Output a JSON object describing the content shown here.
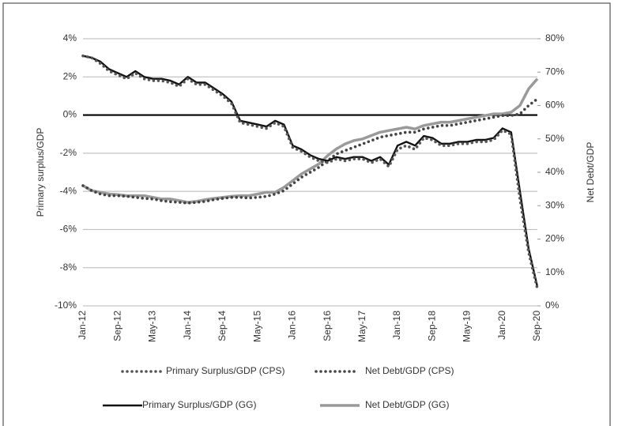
{
  "chart_data": {
    "type": "line",
    "ylabel": "Primary surplus/GDP",
    "y2label": "Net Debt/GDP",
    "categories": [
      "Jan-12",
      null,
      null,
      null,
      "Sep-12",
      null,
      null,
      null,
      "May-13",
      null,
      null,
      null,
      "Jan-14",
      null,
      null,
      null,
      "Sep-14",
      null,
      null,
      null,
      "May-15",
      null,
      null,
      null,
      "Jan-16",
      null,
      null,
      null,
      "Sep-16",
      null,
      null,
      null,
      "May-17",
      null,
      null,
      null,
      "Jan-18",
      null,
      null,
      null,
      "Sep-18",
      null,
      null,
      null,
      "May-19",
      null,
      null,
      null,
      "Jan-20",
      null,
      null,
      null,
      "Sep-20"
    ],
    "ylim": [
      -10,
      4
    ],
    "yticks": [
      {
        "value": 4,
        "label": "4%"
      },
      {
        "value": 2,
        "label": "2%"
      },
      {
        "value": 0,
        "label": "0%"
      },
      {
        "value": -2,
        "label": "-2%"
      },
      {
        "value": -4,
        "label": "-4%"
      },
      {
        "value": -6,
        "label": "-6%"
      },
      {
        "value": -8,
        "label": "-8%"
      },
      {
        "value": -10,
        "label": "-10%"
      }
    ],
    "y2lim": [
      0,
      80
    ],
    "y2ticks": [
      {
        "value": 80,
        "label": "80%"
      },
      {
        "value": 70,
        "label": "70%"
      },
      {
        "value": 60,
        "label": "60%"
      },
      {
        "value": 50,
        "label": "50%"
      },
      {
        "value": 40,
        "label": "40%"
      },
      {
        "value": 30,
        "label": "30%"
      },
      {
        "value": 20,
        "label": "20%"
      },
      {
        "value": 10,
        "label": "10%"
      },
      {
        "value": 0,
        "label": "0%"
      }
    ],
    "grid": true,
    "series": [
      {
        "name": "Primary Surplus/GDP (CPS)",
        "color": "#555555",
        "style": "dotted",
        "values": [
          3.1,
          3.0,
          2.7,
          2.3,
          2.1,
          1.9,
          2.2,
          1.9,
          1.8,
          1.8,
          1.7,
          1.5,
          1.9,
          1.6,
          1.6,
          1.3,
          1.0,
          0.6,
          -0.4,
          -0.5,
          -0.6,
          -0.7,
          -0.4,
          -0.6,
          -1.7,
          -1.9,
          -2.2,
          -2.4,
          -2.5,
          -2.3,
          -2.4,
          -2.3,
          -2.3,
          -2.5,
          -2.3,
          -2.7,
          -1.8,
          -1.6,
          -1.8,
          -1.2,
          -1.3,
          -1.6,
          -1.6,
          -1.5,
          -1.5,
          -1.4,
          -1.4,
          -1.3,
          -0.8,
          -1.0,
          -4.4,
          -7.2,
          -9.1
        ]
      },
      {
        "name": "Net Debt/GDP (CPS)",
        "color": "#444444",
        "style": "dotted",
        "axis": "y2",
        "values": [
          36,
          34.5,
          33.5,
          33,
          33,
          32.8,
          32.5,
          32.2,
          32,
          31.5,
          31.2,
          31,
          30.8,
          31,
          31.3,
          31.8,
          32.2,
          32.5,
          32.5,
          32.3,
          32.5,
          32.8,
          33.5,
          34.5,
          36.5,
          38.5,
          40,
          41.5,
          43.5,
          45.5,
          46.5,
          47.5,
          48.5,
          49.5,
          50.5,
          51,
          51.5,
          52,
          52,
          53,
          53.5,
          54,
          54,
          54.5,
          55,
          55.5,
          56,
          56.5,
          57,
          57,
          57.5,
          60,
          62
        ]
      },
      {
        "name": "Primary Surplus/GDP (GG)",
        "color": "#111111",
        "style": "solid",
        "values": [
          3.1,
          3.0,
          2.8,
          2.4,
          2.2,
          2.0,
          2.3,
          2.0,
          1.9,
          1.9,
          1.8,
          1.6,
          2.0,
          1.7,
          1.7,
          1.4,
          1.1,
          0.7,
          -0.3,
          -0.4,
          -0.5,
          -0.6,
          -0.3,
          -0.5,
          -1.6,
          -1.8,
          -2.1,
          -2.3,
          -2.4,
          -2.2,
          -2.3,
          -2.2,
          -2.2,
          -2.4,
          -2.2,
          -2.6,
          -1.6,
          -1.4,
          -1.6,
          -1.1,
          -1.2,
          -1.5,
          -1.5,
          -1.4,
          -1.4,
          -1.3,
          -1.3,
          -1.2,
          -0.7,
          -0.9,
          -4.0,
          -7.0,
          -9.0
        ]
      },
      {
        "name": "Net Debt/GDP (GG)",
        "color": "#9a9a9a",
        "style": "solid",
        "axis": "y2",
        "values": [
          36,
          34.5,
          34,
          33.5,
          33.3,
          33,
          33,
          33,
          32.5,
          32,
          32,
          31.5,
          31,
          31.3,
          31.8,
          32.2,
          32.5,
          32.8,
          33,
          33,
          33.5,
          34,
          34,
          35.5,
          37.5,
          39.5,
          41,
          42.5,
          45,
          47,
          48.5,
          49.5,
          50,
          51,
          52,
          52.5,
          53,
          53.5,
          53,
          54,
          54.5,
          55,
          55,
          55.5,
          56,
          56.5,
          57,
          57.5,
          57.5,
          58,
          60,
          65,
          68
        ]
      }
    ]
  }
}
